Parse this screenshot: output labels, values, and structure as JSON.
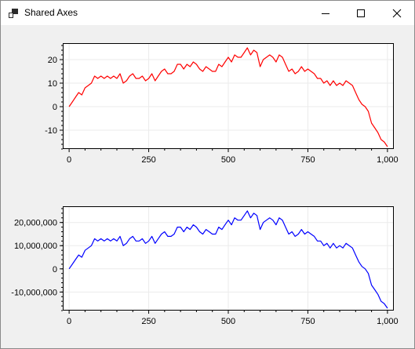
{
  "window": {
    "title": "Shared Axes",
    "icon": "app-icon",
    "controls": [
      "minimize-icon",
      "maximize-icon",
      "close-icon"
    ]
  },
  "chart_data": [
    {
      "type": "line",
      "title": "",
      "xlabel": "",
      "ylabel": "",
      "xlim": [
        -20,
        1020
      ],
      "ylim": [
        -18,
        27
      ],
      "x_ticks": [
        0,
        250,
        500,
        750,
        1000
      ],
      "x_tick_labels": [
        "0",
        "250",
        "500",
        "750",
        "1,000"
      ],
      "y_ticks": [
        -10,
        0,
        10,
        20
      ],
      "y_tick_labels": [
        "-10",
        "0",
        "10",
        "20"
      ],
      "grid": true,
      "legend": "none",
      "series": [
        {
          "color": "#ff0000",
          "x": [
            0,
            10,
            20,
            30,
            40,
            50,
            60,
            70,
            80,
            90,
            100,
            110,
            120,
            130,
            140,
            150,
            160,
            170,
            180,
            190,
            200,
            210,
            220,
            230,
            240,
            250,
            260,
            270,
            280,
            290,
            300,
            310,
            320,
            330,
            340,
            350,
            360,
            370,
            380,
            390,
            400,
            410,
            420,
            430,
            440,
            450,
            460,
            470,
            480,
            490,
            500,
            510,
            520,
            530,
            540,
            550,
            560,
            570,
            580,
            590,
            600,
            610,
            620,
            630,
            640,
            650,
            660,
            670,
            680,
            690,
            700,
            710,
            720,
            730,
            740,
            750,
            760,
            770,
            780,
            790,
            800,
            810,
            820,
            830,
            840,
            850,
            860,
            870,
            880,
            890,
            900,
            910,
            920,
            930,
            940,
            950,
            960,
            970,
            980,
            990,
            1000
          ],
          "y": [
            0,
            2,
            4,
            6,
            5,
            8,
            9,
            10,
            13,
            12,
            13,
            12,
            13,
            12,
            13,
            12,
            14,
            10,
            11,
            13,
            14,
            12,
            12,
            13,
            11,
            12,
            14,
            11,
            13,
            15,
            16,
            14,
            14,
            15,
            18,
            18,
            16,
            18,
            17,
            19,
            18,
            16,
            15,
            17,
            16,
            15,
            15,
            18,
            17,
            19,
            21,
            19,
            22,
            21,
            21,
            23,
            25,
            22,
            24,
            23,
            17,
            20,
            21,
            22,
            21,
            19,
            22,
            21,
            18,
            15,
            16,
            14,
            15,
            17,
            15,
            16,
            15,
            14,
            12,
            12,
            10,
            11,
            9,
            11,
            9,
            10,
            9,
            11,
            10,
            9,
            6,
            3,
            1,
            0,
            -2,
            -7,
            -9,
            -11,
            -14,
            -15,
            -17
          ]
        }
      ]
    },
    {
      "type": "line",
      "title": "",
      "xlabel": "",
      "ylabel": "",
      "xlim": [
        -20,
        1020
      ],
      "ylim": [
        -18000000,
        27000000
      ],
      "x_ticks": [
        0,
        250,
        500,
        750,
        1000
      ],
      "x_tick_labels": [
        "0",
        "250",
        "500",
        "750",
        "1,000"
      ],
      "y_ticks": [
        -10000000,
        0,
        10000000,
        20000000
      ],
      "y_tick_labels": [
        "-10,000,000",
        "0",
        "10,000,000",
        "20,000,000"
      ],
      "grid": true,
      "legend": "none",
      "series": [
        {
          "color": "#0000ff",
          "x": [
            0,
            10,
            20,
            30,
            40,
            50,
            60,
            70,
            80,
            90,
            100,
            110,
            120,
            130,
            140,
            150,
            160,
            170,
            180,
            190,
            200,
            210,
            220,
            230,
            240,
            250,
            260,
            270,
            280,
            290,
            300,
            310,
            320,
            330,
            340,
            350,
            360,
            370,
            380,
            390,
            400,
            410,
            420,
            430,
            440,
            450,
            460,
            470,
            480,
            490,
            500,
            510,
            520,
            530,
            540,
            550,
            560,
            570,
            580,
            590,
            600,
            610,
            620,
            630,
            640,
            650,
            660,
            670,
            680,
            690,
            700,
            710,
            720,
            730,
            740,
            750,
            760,
            770,
            780,
            790,
            800,
            810,
            820,
            830,
            840,
            850,
            860,
            870,
            880,
            890,
            900,
            910,
            920,
            930,
            940,
            950,
            960,
            970,
            980,
            990,
            1000
          ],
          "y": [
            0,
            2000000,
            4000000,
            6000000,
            5000000,
            8000000,
            9000000,
            10000000,
            13000000,
            12000000,
            13000000,
            12000000,
            13000000,
            12000000,
            13000000,
            12000000,
            14000000,
            10000000,
            11000000,
            13000000,
            14000000,
            12000000,
            12000000,
            13000000,
            11000000,
            12000000,
            14000000,
            11000000,
            13000000,
            15000000,
            16000000,
            14000000,
            14000000,
            15000000,
            18000000,
            18000000,
            16000000,
            18000000,
            17000000,
            19000000,
            18000000,
            16000000,
            15000000,
            17000000,
            16000000,
            15000000,
            15000000,
            18000000,
            17000000,
            19000000,
            21000000,
            19000000,
            22000000,
            21000000,
            21000000,
            23000000,
            25000000,
            22000000,
            24000000,
            23000000,
            17000000,
            20000000,
            21000000,
            22000000,
            21000000,
            19000000,
            22000000,
            21000000,
            18000000,
            15000000,
            16000000,
            14000000,
            15000000,
            17000000,
            15000000,
            16000000,
            15000000,
            14000000,
            12000000,
            12000000,
            10000000,
            11000000,
            9000000,
            11000000,
            9000000,
            10000000,
            9000000,
            11000000,
            10000000,
            9000000,
            6000000,
            3000000,
            1000000,
            0,
            -2000000,
            -7000000,
            -9000000,
            -11000000,
            -14000000,
            -15000000,
            -17000000
          ]
        }
      ]
    }
  ]
}
